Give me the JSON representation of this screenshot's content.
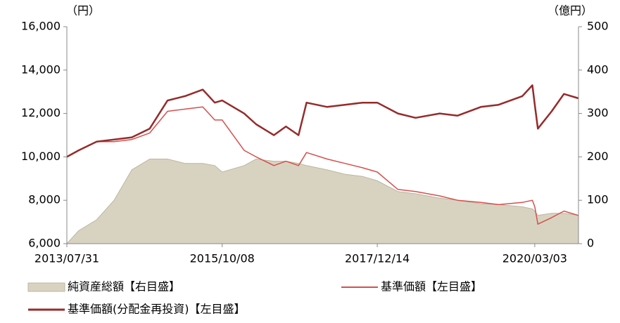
{
  "chart_data": {
    "type": "line",
    "y_label": "（円）",
    "y2_label": "（億円）",
    "x": [
      "2013/07/31",
      "2013/09/30",
      "2013/12/31",
      "2014/03/31",
      "2014/06/30",
      "2014/09/30",
      "2014/12/31",
      "2015/03/31",
      "2015/06/30",
      "2015/08/31",
      "2015/10/08",
      "2016/01/29",
      "2016/03/31",
      "2016/06/30",
      "2016/08/31",
      "2016/11/04",
      "2016/12/15",
      "2017/03/31",
      "2017/06/30",
      "2017/09/29",
      "2017/12/14",
      "2018/03/30",
      "2018/06/29",
      "2018/10/31",
      "2019/01/31",
      "2019/05/31",
      "2019/08/30",
      "2019/12/30",
      "2020/02/20",
      "2020/03/03",
      "2020/03/19",
      "2020/05/29",
      "2020/07/31",
      "2020/10/14"
    ],
    "xlim": [
      "2013/07/31",
      "2020/10/14"
    ],
    "xticks": [
      "2013/07/31",
      "2015/10/08",
      "2017/12/14",
      "2020/03/03"
    ],
    "ylim": [
      6000,
      16000
    ],
    "yticks": [
      {
        "value": 6000,
        "label": "6,000"
      },
      {
        "value": 8000,
        "label": "8,000"
      },
      {
        "value": 10000,
        "label": "10,000"
      },
      {
        "value": 12000,
        "label": "12,000"
      },
      {
        "value": 14000,
        "label": "14,000"
      },
      {
        "value": 16000,
        "label": "16,000"
      }
    ],
    "y2lim": [
      0,
      500
    ],
    "y2ticks": [
      0,
      100,
      200,
      300,
      400,
      500
    ],
    "series": [
      {
        "name": "純資産総額【右目盛】",
        "kind": "area",
        "axis": "y2",
        "color": "#d8d3c1",
        "values": [
          0,
          30,
          55,
          100,
          170,
          195,
          195,
          185,
          185,
          180,
          165,
          180,
          195,
          190,
          190,
          185,
          180,
          170,
          160,
          155,
          145,
          120,
          115,
          105,
          100,
          92,
          90,
          85,
          80,
          75,
          65,
          70,
          70,
          65
        ]
      },
      {
        "name": "基準価額【左目盛】",
        "kind": "line",
        "color": "#d4504c",
        "values": [
          10000,
          10300,
          10700,
          10700,
          10800,
          11100,
          12100,
          12200,
          12300,
          11700,
          11700,
          10300,
          10000,
          9600,
          9800,
          9600,
          10200,
          9900,
          9700,
          9500,
          9300,
          8500,
          8400,
          8200,
          8000,
          7900,
          7800,
          7900,
          8000,
          7700,
          6900,
          7200,
          7500,
          7300
        ]
      },
      {
        "name": "基準価額(分配金再投資)【左目盛】",
        "kind": "line",
        "color": "#962b2b",
        "values": [
          10000,
          10300,
          10700,
          10800,
          10900,
          11300,
          12600,
          12800,
          13100,
          12500,
          12600,
          12000,
          11500,
          11000,
          11400,
          11000,
          12500,
          12300,
          12400,
          12500,
          12500,
          12000,
          11800,
          12000,
          11900,
          12300,
          12400,
          12800,
          13300,
          12400,
          11300,
          12100,
          12900,
          12700
        ]
      }
    ]
  }
}
